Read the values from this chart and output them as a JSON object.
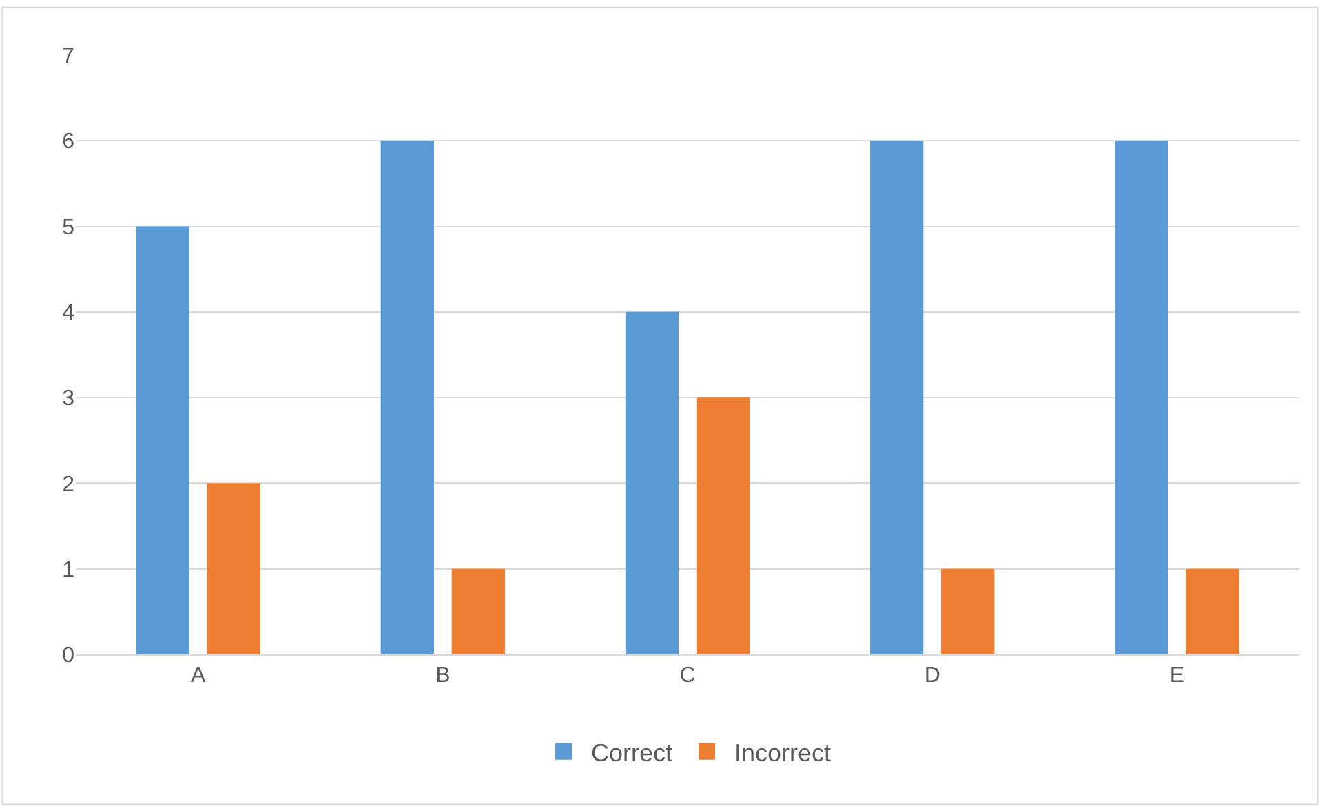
{
  "chart_data": {
    "type": "bar",
    "categories": [
      "A",
      "B",
      "C",
      "D",
      "E"
    ],
    "series": [
      {
        "name": "Correct",
        "color": "#5b9bd5",
        "values": [
          5,
          6,
          4,
          6,
          6
        ]
      },
      {
        "name": "Incorrect",
        "color": "#ed7d31",
        "values": [
          2,
          1,
          3,
          1,
          1
        ]
      }
    ],
    "ylim": [
      0,
      7
    ],
    "yticks": [
      0,
      1,
      2,
      3,
      4,
      5,
      6,
      7
    ],
    "grid": "y",
    "legend": "bottom"
  }
}
